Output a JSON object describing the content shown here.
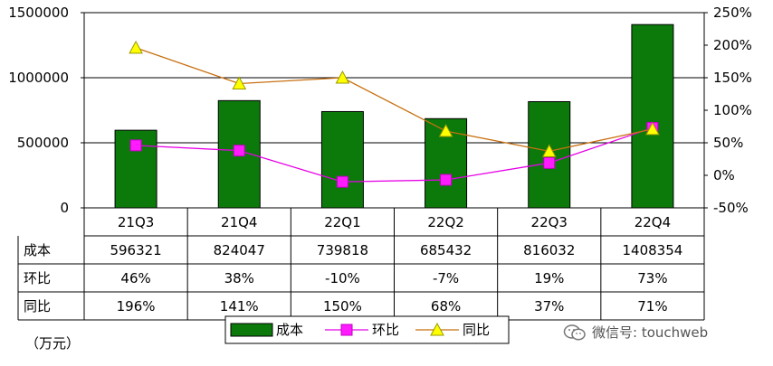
{
  "chart_data": {
    "type": "bar",
    "categories": [
      "21Q3",
      "21Q4",
      "22Q1",
      "22Q2",
      "22Q3",
      "22Q4"
    ],
    "series": [
      {
        "name": "成本",
        "type": "bar",
        "axis": "left",
        "color": "#0b7a0b",
        "values": [
          596321,
          824047,
          739818,
          685432,
          816032,
          1408354
        ]
      },
      {
        "name": "环比",
        "type": "line",
        "axis": "right",
        "color": "#e600e6",
        "marker": "square",
        "values": [
          46,
          38,
          -10,
          -7,
          19,
          73
        ]
      },
      {
        "name": "同比",
        "type": "line",
        "axis": "right",
        "color": "#c87010",
        "marker": "triangle",
        "values": [
          196,
          141,
          150,
          68,
          37,
          71
        ]
      }
    ],
    "y_left": {
      "ylim": [
        0,
        1500000
      ],
      "ticks": [
        "0",
        "500000",
        "1000000",
        "1500000"
      ]
    },
    "y_right": {
      "ylim": [
        -50,
        250
      ],
      "ticks": [
        "-50%",
        "0%",
        "50%",
        "100%",
        "150%",
        "200%",
        "250%"
      ]
    },
    "table": {
      "rows": [
        {
          "label": "成本",
          "cells": [
            "596321",
            "824047",
            "739818",
            "685432",
            "816032",
            "1408354"
          ]
        },
        {
          "label": "环比",
          "cells": [
            "46%",
            "38%",
            "-10%",
            "-7%",
            "19%",
            "73%"
          ]
        },
        {
          "label": "同比",
          "cells": [
            "196%",
            "141%",
            "150%",
            "68%",
            "37%",
            "71%"
          ]
        }
      ]
    },
    "legend": {
      "position": "bottom",
      "items": [
        "成本",
        "环比",
        "同比"
      ]
    },
    "gridlines": true
  },
  "unit_label": "（万元）",
  "watermark": "微信号: touchweb"
}
